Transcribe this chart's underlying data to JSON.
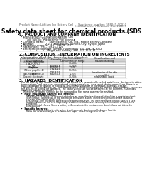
{
  "top_left_text": "Product Name: Lithium Ion Battery Cell",
  "top_right_line1": "Substance number: SRF049-00010",
  "top_right_line2": "Establishment / Revision: Dec.1.2019",
  "main_title": "Safety data sheet for chemical products (SDS)",
  "section1_title": "1. PRODUCT AND COMPANY IDENTIFICATION",
  "section1_items": [
    "  • Product name: Lithium Ion Battery Cell",
    "  • Product code: Cylindrical-type cell",
    "          OIF-B6500J, OIF-B6500L, OIF-B6500A",
    "  • Company name:      Sanyo Electric Co., Ltd., Mobile Energy Company",
    "  • Address:              2-2-1  Kaminaizen, Sumoto-City, Hyogo, Japan",
    "  • Telephone number:   +81-799-26-4111",
    "  • Fax number:  +81-799-26-4120",
    "  • Emergency telephone number (Weekdays) +81-799-26-3062",
    "                                   (Night and Holiday) +81-799-26-3131"
  ],
  "section2_title": "2. COMPOSITION / INFORMATION ON INGREDIENTS",
  "section2_sub1": "  • Substance or preparation: Preparation",
  "section2_sub2": "  • Information about the chemical nature of product:",
  "table_headers": [
    "Component name /\nSeveral name",
    "CAS number",
    "Concentration /\nConcentration range",
    "Classification and\nhazard labeling"
  ],
  "table_rows": [
    [
      "Lithium cobalt oxide\n(LiMnCoO(2x))",
      "-",
      "30-60%",
      "-"
    ],
    [
      "Iron",
      "7439-89-6",
      "15-25%",
      "-"
    ],
    [
      "Aluminum",
      "7429-90-5",
      "2-5%",
      "-"
    ],
    [
      "Graphite\n(Mixed graphite-1)\n(All-Mix graphite-1)",
      "7782-42-5\n7782-42-5",
      "10-25%",
      "-"
    ],
    [
      "Copper",
      "7440-50-8",
      "5-15%",
      "Sensitization of the skin\ngroup No.2"
    ],
    [
      "Organic electrolyte",
      "-",
      "10-20%",
      "Inflammable liquid"
    ]
  ],
  "section3_title": "3. HAZARDS IDENTIFICATION",
  "section3_para1": "   For the battery cell, chemical materials are stored in a hermetically sealed metal case, designed to withstand",
  "section3_para2": "   temperatures and pressures encountered during normal use. As a result, during normal use, there is no",
  "section3_para3": "   physical danger of ignition or explosion and chemical danger of hazardous materials leakage.",
  "section3_para4": "      However, if exposed to a fire, added mechanical shocks, decomposed, written electro without any measure,",
  "section3_para5": "   the gas inside cannot be operated. The battery cell case will be breached at the extreme, hazardous",
  "section3_para6": "   materials may be released.",
  "section3_para7": "      Moreover, if heated strongly by the surrounding fire, some gas may be emitted.",
  "bullet1": "  •  Most important hazard and effects:",
  "human_header": "       Human health effects:",
  "inhalation": "          Inhalation: The release of the electrolyte has an anaesthesia action and stimulates a respiratory tract.",
  "skin1": "          Skin contact: The release of the electrolyte stimulates a skin. The electrolyte skin contact causes a",
  "skin2": "          sore and stimulation on the skin.",
  "eye1": "          Eye contact: The release of the electrolyte stimulates eyes. The electrolyte eye contact causes a sore",
  "eye2": "          and stimulation on the eye. Especially, a substance that causes a strong inflammation of the eyes is",
  "eye3": "          contained.",
  "env1": "          Environmental effects: Since a battery cell remains in the environment, do not throw out it into the",
  "env2": "          environment.",
  "bullet2": "  •  Specific hazards:",
  "spec1": "          If the electrolyte contacts with water, it will generate detrimental hydrogen fluoride.",
  "spec2": "          Since the used electrolyte is inflammable liquid, do not bring close to fire.",
  "bg_color": "#ffffff"
}
